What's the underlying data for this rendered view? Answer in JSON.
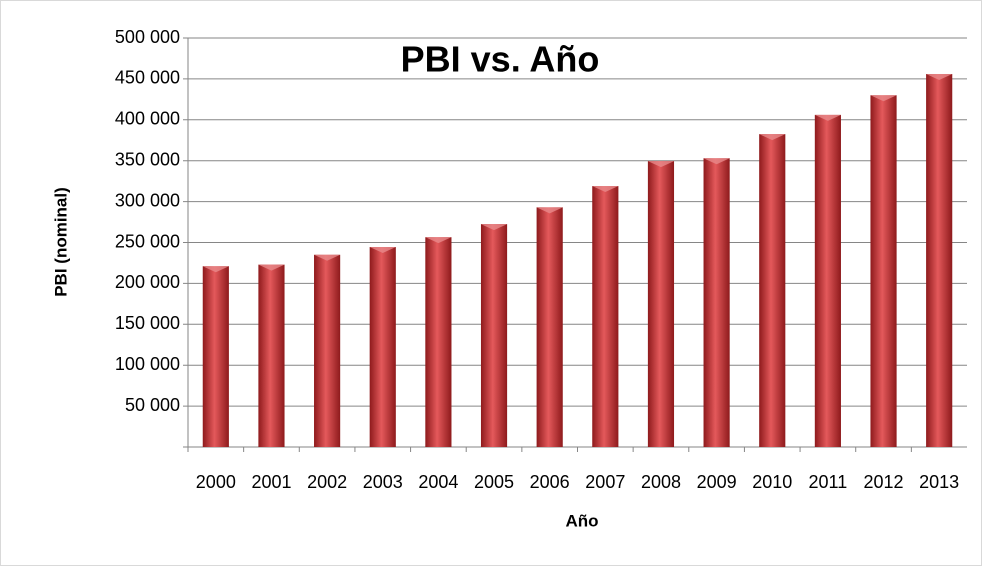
{
  "chart_data": {
    "type": "bar",
    "title": "PBI vs. Año",
    "x_label": "Año",
    "y_label": "PBI (nominal)",
    "categories": [
      "2000",
      "2001",
      "2002",
      "2003",
      "2004",
      "2005",
      "2006",
      "2007",
      "2008",
      "2009",
      "2010",
      "2011",
      "2012",
      "2013"
    ],
    "values": [
      221000,
      223000,
      235000,
      244500,
      256500,
      272500,
      293000,
      319000,
      349500,
      353000,
      382500,
      406000,
      430000,
      456000
    ],
    "color": "#c0282c",
    "ylim": [
      0,
      500000
    ],
    "yticks": [
      {
        "value": 50000,
        "label": "50 000"
      },
      {
        "value": 100000,
        "label": "100 000"
      },
      {
        "value": 150000,
        "label": "150 000"
      },
      {
        "value": 200000,
        "label": "200 000"
      },
      {
        "value": 250000,
        "label": "250 000"
      },
      {
        "value": 300000,
        "label": "300 000"
      },
      {
        "value": 350000,
        "label": "350 000"
      },
      {
        "value": 400000,
        "label": "400 000"
      },
      {
        "value": 450000,
        "label": "450 000"
      },
      {
        "value": 500000,
        "label": "500 000"
      }
    ],
    "grid": true
  }
}
